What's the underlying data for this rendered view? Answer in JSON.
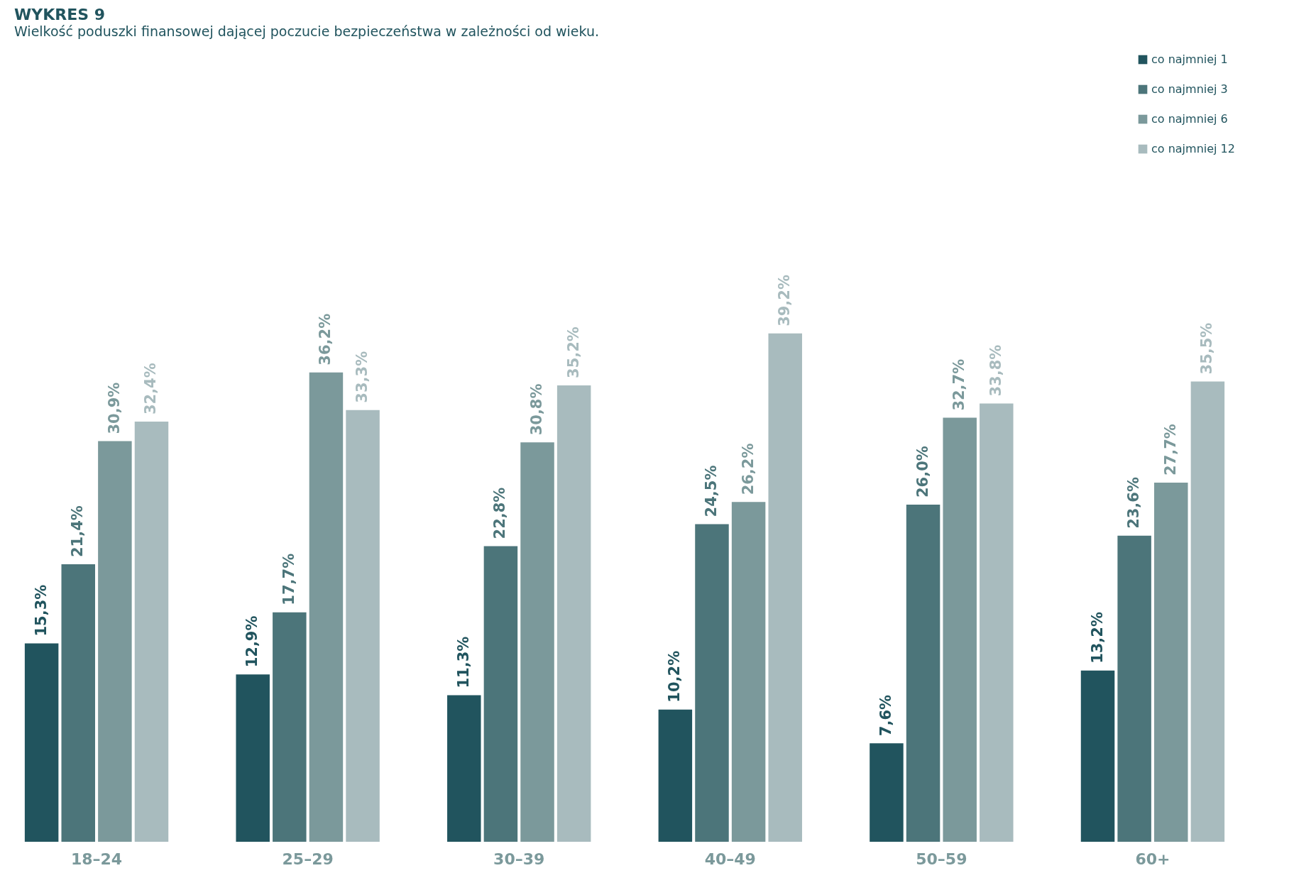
{
  "chart_data": {
    "type": "bar",
    "title": "WYKRES 9",
    "subtitle": "Wielkość poduszki finansowej dającej poczucie bezpieczeństwa w zależności od wieku.",
    "categories": [
      "18–24",
      "25–29",
      "30–39",
      "40–49",
      "50–59",
      "60+"
    ],
    "series": [
      {
        "name": "co najmniej 1",
        "color": "#21545e",
        "values": [
          15.3,
          12.9,
          11.3,
          10.2,
          7.6,
          13.2
        ],
        "value_labels": [
          "15,3%",
          "12,9%",
          "11,3%",
          "10,2%",
          "7,6%",
          "13,2%"
        ]
      },
      {
        "name": "co najmniej 3",
        "color": "#4c757a",
        "values": [
          21.4,
          17.7,
          22.8,
          24.5,
          26.0,
          23.6
        ],
        "value_labels": [
          "21,4%",
          "17,7%",
          "22,8%",
          "24,5%",
          "26,0%",
          "23,6%"
        ]
      },
      {
        "name": "co najmniej 6",
        "color": "#7b999b",
        "values": [
          30.9,
          36.2,
          30.8,
          26.2,
          32.7,
          27.7
        ],
        "value_labels": [
          "30,9%",
          "36,2%",
          "30,8%",
          "26,2%",
          "32,7%",
          "27,7%"
        ]
      },
      {
        "name": "co najmniej 12",
        "color": "#a8bbbe",
        "values": [
          32.4,
          33.3,
          35.2,
          39.2,
          33.8,
          35.5
        ],
        "value_labels": [
          "32,4%",
          "33,3%",
          "35,2%",
          "39,2%",
          "33,8%",
          "35,5%"
        ]
      }
    ],
    "legend": "top right"
  }
}
